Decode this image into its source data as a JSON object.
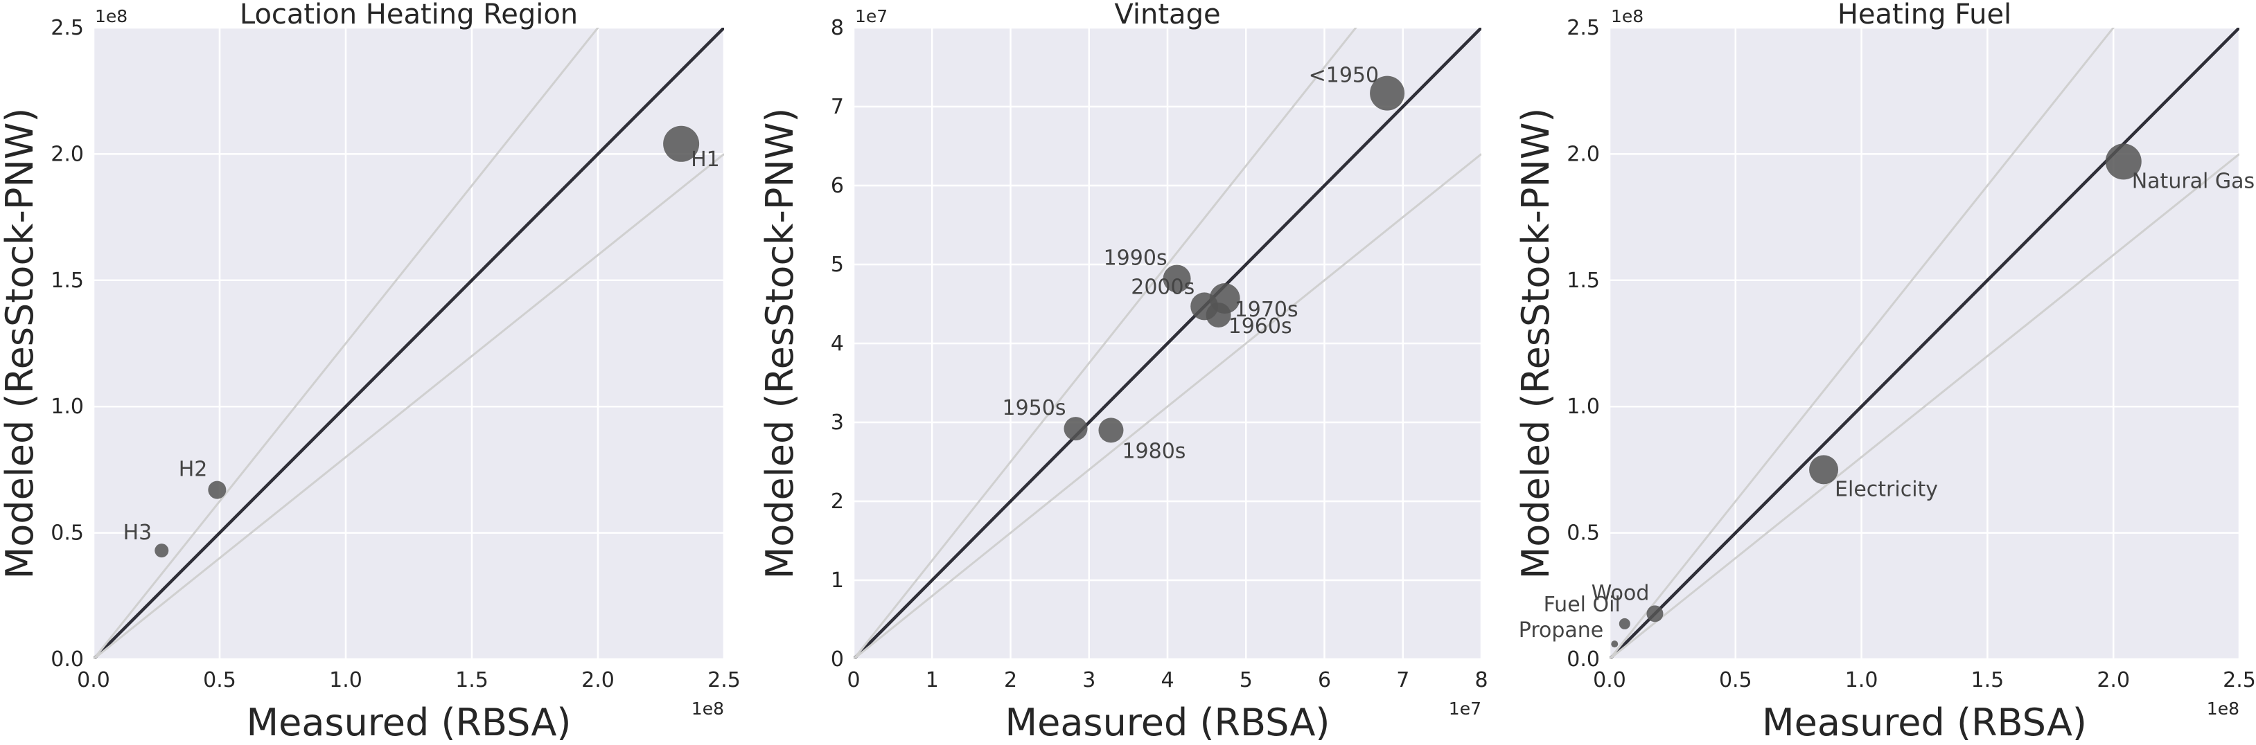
{
  "chart_data": [
    {
      "type": "scatter",
      "title": "Location Heating Region",
      "xlabel": "Measured (RBSA)",
      "ylabel": "Modeled (ResStock-PNW)",
      "x_exponent": "1e8",
      "y_exponent": "1e8",
      "xlim": [
        0,
        2.5
      ],
      "ylim": [
        0,
        2.5
      ],
      "xticks": [
        "0.0",
        "0.5",
        "1.0",
        "1.5",
        "2.0",
        "2.5"
      ],
      "yticks": [
        "0.0",
        "0.5",
        "1.0",
        "1.5",
        "2.0",
        "2.5"
      ],
      "reference_slopes": [
        1,
        1.25,
        0.8
      ],
      "grid": true,
      "points": [
        {
          "label": "H1",
          "x": 2.33,
          "y": 2.04,
          "size": 26
        },
        {
          "label": "H2",
          "x": 0.49,
          "y": 0.67,
          "size": 13
        },
        {
          "label": "H3",
          "x": 0.27,
          "y": 0.43,
          "size": 10
        }
      ]
    },
    {
      "type": "scatter",
      "title": "Vintage",
      "xlabel": "Measured (RBSA)",
      "ylabel": "Modeled (ResStock-PNW)",
      "x_exponent": "1e7",
      "y_exponent": "1e7",
      "xlim": [
        0,
        8
      ],
      "ylim": [
        0,
        8
      ],
      "xticks": [
        "0",
        "1",
        "2",
        "3",
        "4",
        "5",
        "6",
        "7",
        "8"
      ],
      "yticks": [
        "0",
        "1",
        "2",
        "3",
        "4",
        "5",
        "6",
        "7",
        "8"
      ],
      "reference_slopes": [
        1,
        1.25,
        0.8
      ],
      "grid": true,
      "points": [
        {
          "label": "<1950",
          "x": 6.8,
          "y": 7.17,
          "size": 25
        },
        {
          "label": "1990s",
          "x": 4.12,
          "y": 4.82,
          "size": 20
        },
        {
          "label": "2000s",
          "x": 4.47,
          "y": 4.47,
          "size": 20
        },
        {
          "label": "1970s",
          "x": 4.73,
          "y": 4.57,
          "size": 22
        },
        {
          "label": "1960s",
          "x": 4.65,
          "y": 4.36,
          "size": 18
        },
        {
          "label": "1950s",
          "x": 2.83,
          "y": 2.92,
          "size": 17
        },
        {
          "label": "1980s",
          "x": 3.28,
          "y": 2.9,
          "size": 18
        }
      ]
    },
    {
      "type": "scatter",
      "title": "Heating Fuel",
      "xlabel": "Measured (RBSA)",
      "ylabel": "Modeled (ResStock-PNW)",
      "x_exponent": "1e8",
      "y_exponent": "1e8",
      "xlim": [
        0,
        2.5
      ],
      "ylim": [
        0,
        2.5
      ],
      "xticks": [
        "0.0",
        "0.5",
        "1.0",
        "1.5",
        "2.0",
        "2.5"
      ],
      "yticks": [
        "0.0",
        "0.5",
        "1.0",
        "1.5",
        "2.0",
        "2.5"
      ],
      "reference_slopes": [
        1,
        1.25,
        0.8
      ],
      "grid": true,
      "points": [
        {
          "label": "Natural Gas",
          "x": 2.04,
          "y": 1.97,
          "size": 26
        },
        {
          "label": "Electricity",
          "x": 0.85,
          "y": 0.75,
          "size": 21
        },
        {
          "label": "Wood",
          "x": 0.18,
          "y": 0.18,
          "size": 12
        },
        {
          "label": "Fuel Oil",
          "x": 0.06,
          "y": 0.14,
          "size": 8
        },
        {
          "label": "Propane",
          "x": 0.02,
          "y": 0.06,
          "size": 5
        }
      ]
    }
  ]
}
